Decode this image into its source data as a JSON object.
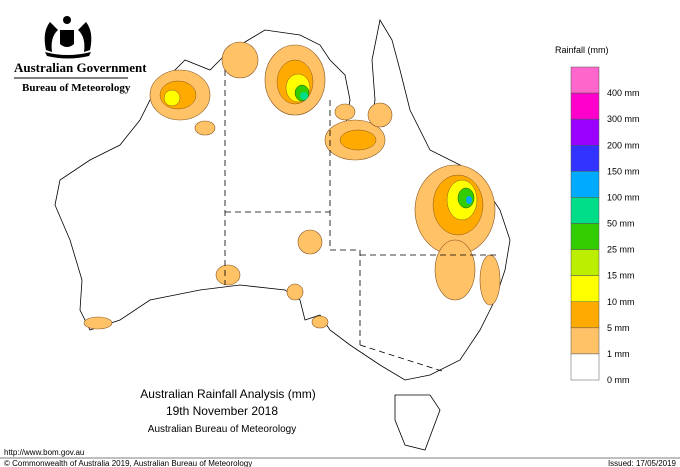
{
  "header": {
    "agency": "Australian Government",
    "bureau": "Bureau of Meteorology"
  },
  "legend": {
    "title": "Rainfall (mm)",
    "items": [
      {
        "label": "400 mm",
        "color": "#ff66cc"
      },
      {
        "label": "300 mm",
        "color": "#ff00cc"
      },
      {
        "label": "200 mm",
        "color": "#9900ff"
      },
      {
        "label": "150 mm",
        "color": "#3333ff"
      },
      {
        "label": "100 mm",
        "color": "#00aaff"
      },
      {
        "label": "50 mm",
        "color": "#00dd88"
      },
      {
        "label": "25 mm",
        "color": "#33cc00"
      },
      {
        "label": "15 mm",
        "color": "#bbee00"
      },
      {
        "label": "10 mm",
        "color": "#ffff00"
      },
      {
        "label": "5 mm",
        "color": "#ffaa00"
      },
      {
        "label": "1 mm",
        "color": "#ffc266"
      },
      {
        "label": "0 mm",
        "color": "#ffffff"
      }
    ]
  },
  "title": {
    "line1": "Australian Rainfall Analysis (mm)",
    "line2": "19th November 2018",
    "line3": "Australian Bureau of Meteorology"
  },
  "footer": {
    "url": "http://www.bom.gov.au",
    "copyright": "© Commonwealth of Australia 2019, Australian Bureau of Meteorology",
    "issued": "Issued: 17/05/2019"
  }
}
